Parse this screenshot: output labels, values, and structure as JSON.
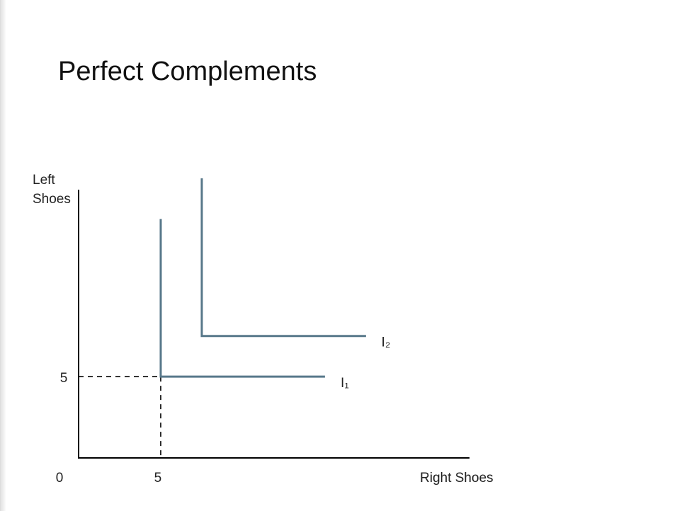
{
  "chart_data": {
    "type": "line",
    "title": "Perfect Complements",
    "x_label": "Right Shoes",
    "y_label": "Left Shoes",
    "series": [
      {
        "name": "I₁",
        "color": "#58788a",
        "x": [
          5,
          5,
          15
        ],
        "values": [
          14.7,
          5,
          5
        ]
      },
      {
        "name": "I₂",
        "color": "#58788a",
        "x": [
          7.5,
          7.5,
          17.5
        ],
        "values": [
          17.2,
          7.5,
          7.5
        ]
      }
    ],
    "xlim": [
      0,
      23.8
    ],
    "ylim": [
      0,
      16.5
    ],
    "xticks": [
      0,
      5
    ],
    "yticks": [
      5
    ],
    "dashed_guides": true,
    "grid": false
  }
}
